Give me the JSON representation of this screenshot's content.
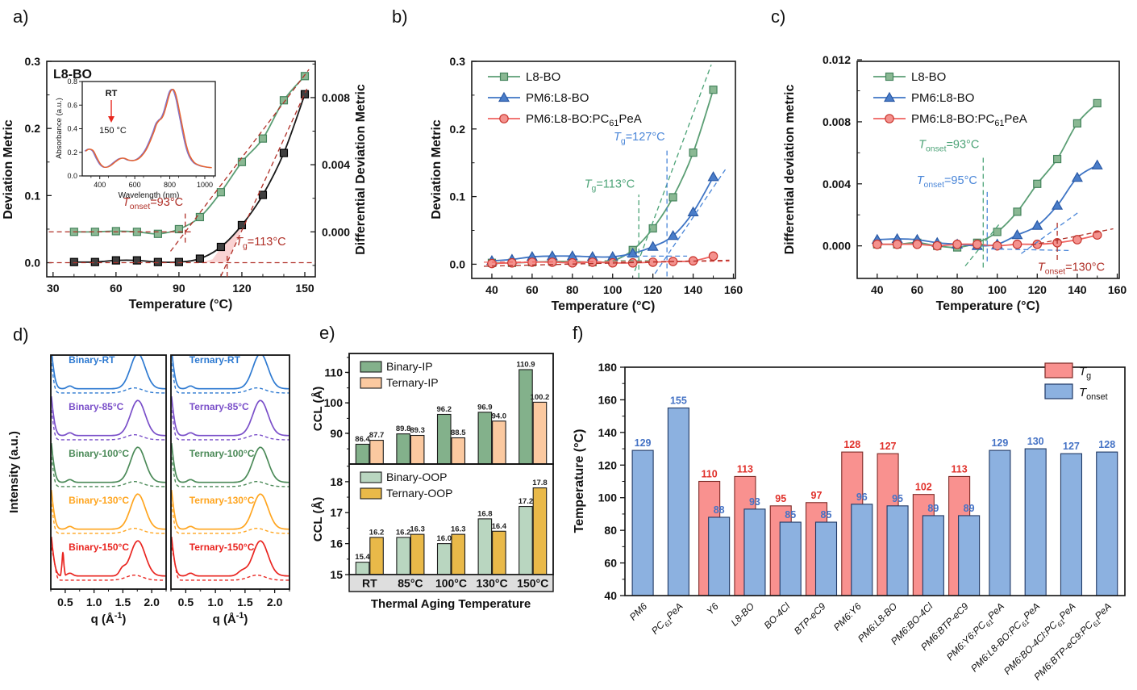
{
  "chart_data": [
    {
      "id": "a",
      "letter": "a)",
      "type": "line",
      "title": "L8-BO",
      "xlabel": "Temperature (°C)",
      "ylabel": "Deviation Metric",
      "y2label": "Differential Deviation Metric",
      "x": [
        40,
        50,
        60,
        70,
        80,
        90,
        100,
        110,
        120,
        130,
        140,
        150
      ],
      "xticks": [
        30,
        60,
        90,
        120,
        150
      ],
      "yticks": [
        "0.0",
        "0.1",
        "0.2",
        "0.3"
      ],
      "y2ticks": [
        "0.000",
        "0.004",
        "0.008"
      ],
      "y2map": {
        "base": 0.046,
        "scale": 25
      },
      "series": [
        {
          "name": "deviation-metric",
          "marker": "s",
          "line": "#5b9e74",
          "fill": "#8ab893",
          "edge": "#44845c",
          "axis": "left",
          "values": [
            0.046,
            0.046,
            0.047,
            0.046,
            0.043,
            0.05,
            0.068,
            0.105,
            0.15,
            0.185,
            0.242,
            0.278
          ]
        },
        {
          "name": "differential-deviation-metric",
          "marker": "s",
          "line": "#1a1a1a",
          "fill": "#3f3f3f",
          "edge": "#000000",
          "axis": "right",
          "values": [
            -0.0018,
            -0.0018,
            -0.0017,
            -0.0017,
            -0.0018,
            -0.0018,
            -0.0016,
            -0.0009,
            0.0004,
            0.0022,
            0.0047,
            0.0082
          ]
        }
      ],
      "ann_color": "#b03028",
      "ann_lines": [
        [
          28,
          0.046,
          96,
          0.046
        ],
        [
          86,
          0.017,
          152,
          0.288
        ],
        [
          93,
          0.03,
          93,
          0.078
        ],
        [
          28,
          0,
          155,
          0
        ],
        [
          110,
          -0.02,
          151,
          0.259
        ],
        [
          113,
          -0.021,
          113,
          0.012
        ]
      ],
      "ann_texts": [
        {
          "x": 92,
          "y": 0.085,
          "t": "*T*_{onset}=93°C",
          "c": "#b03028",
          "a": "end"
        },
        {
          "x": 117,
          "y": 0.026,
          "t": "*T*_{g}=113°C",
          "c": "#b03028",
          "a": "start"
        }
      ],
      "shade": {
        "fill": "#f6b6b6",
        "pts": [
          [
            101,
            0.001
          ],
          [
            106,
            0.005
          ],
          [
            110,
            0.022
          ],
          [
            114,
            0.035
          ],
          [
            118,
            0.047
          ],
          [
            120.5,
            0.054
          ],
          [
            113,
            0.001
          ]
        ]
      },
      "inset": {
        "xlabel": "Wavelength (nm)",
        "ylabel": "Absorbance (a.u.)",
        "xticks": [
          400,
          600,
          800,
          1000
        ],
        "yticks": [
          "0.0",
          "0.2",
          "0.4",
          "0.6",
          "0.8"
        ],
        "label_rt": "RT",
        "label_150": "150 °C",
        "colors": [
          "#8372c9",
          "#e8632c"
        ],
        "curve": [
          [
            320,
            0.21
          ],
          [
            335,
            0.225
          ],
          [
            350,
            0.225
          ],
          [
            365,
            0.21
          ],
          [
            385,
            0.15
          ],
          [
            405,
            0.1
          ],
          [
            425,
            0.075
          ],
          [
            445,
            0.075
          ],
          [
            465,
            0.09
          ],
          [
            490,
            0.12
          ],
          [
            515,
            0.145
          ],
          [
            540,
            0.15
          ],
          [
            565,
            0.135
          ],
          [
            590,
            0.13
          ],
          [
            615,
            0.14
          ],
          [
            640,
            0.17
          ],
          [
            665,
            0.22
          ],
          [
            690,
            0.3
          ],
          [
            710,
            0.375
          ],
          [
            725,
            0.44
          ],
          [
            740,
            0.47
          ],
          [
            755,
            0.49
          ],
          [
            770,
            0.54
          ],
          [
            785,
            0.62
          ],
          [
            800,
            0.7
          ],
          [
            812,
            0.73
          ],
          [
            825,
            0.725
          ],
          [
            840,
            0.66
          ],
          [
            855,
            0.55
          ],
          [
            875,
            0.4
          ],
          [
            895,
            0.26
          ],
          [
            915,
            0.17
          ],
          [
            940,
            0.115
          ],
          [
            970,
            0.09
          ],
          [
            1000,
            0.078
          ],
          [
            1040,
            0.07
          ]
        ]
      }
    },
    {
      "id": "b",
      "letter": "b)",
      "type": "line",
      "xlabel": "Temperature (°C)",
      "ylabel": "Deviation Metric",
      "x": [
        40,
        50,
        60,
        70,
        80,
        90,
        100,
        110,
        120,
        130,
        140,
        150
      ],
      "xticks": [
        40,
        60,
        80,
        100,
        120,
        140,
        160
      ],
      "yticks": [
        "0.0",
        "0.1",
        "0.2",
        "0.3"
      ],
      "legend": [
        "L8-BO",
        "PM6:L8-BO",
        "PM6:L8-BO:PC_{61}PeA"
      ],
      "series": [
        {
          "name": "L8-BO",
          "marker": "s",
          "line": "#5b9e74",
          "fill": "#8ab893",
          "edge": "#44845c",
          "axis": "left",
          "values": [
            0.002,
            0.002,
            0.003,
            0.004,
            0.004,
            0.003,
            0.005,
            0.021,
            0.053,
            0.099,
            0.165,
            0.258
          ]
        },
        {
          "name": "PM6:L8-BO",
          "marker": "t",
          "line": "#3e74c4",
          "fill": "#4a7dc9",
          "edge": "#2a59a5",
          "axis": "left",
          "values": [
            0.005,
            0.007,
            0.011,
            0.012,
            0.012,
            0.011,
            0.011,
            0.016,
            0.026,
            0.042,
            0.077,
            0.129
          ]
        },
        {
          "name": "PM6:L8-BO:PC61PeA",
          "marker": "c",
          "line": "#ef6360",
          "fill": "#f4928e",
          "edge": "#c9362e",
          "axis": "left",
          "values": [
            0.001,
            0.002,
            0.003,
            0.003,
            0.002,
            0.003,
            0.002,
            0.002,
            0.003,
            0.004,
            0.005,
            0.012
          ]
        }
      ],
      "ann_lines2": [
        {
          "l": [
            113,
            -0.02,
            113,
            0.103
          ],
          "c": "#4ca377"
        },
        {
          "l": [
            111,
            -0.01,
            149,
            0.295
          ],
          "c": "#4ca377"
        },
        {
          "l": [
            96,
            0.005,
            119,
            0.005
          ],
          "c": "#4ca377"
        },
        {
          "l": [
            127,
            -0.018,
            127,
            0.168
          ],
          "c": "#4a86d8"
        },
        {
          "l": [
            121,
            -0.014,
            156,
            0.14
          ],
          "c": "#4a86d8"
        },
        {
          "l": [
            103,
            0.012,
            137,
            0.012
          ],
          "c": "#4a86d8"
        },
        {
          "l": [
            36,
            0.003,
            158,
            0.0045
          ],
          "c": "#ef6360"
        },
        {
          "l": [
            36,
            -0.003,
            158,
            0.006
          ],
          "c": "#b03028"
        }
      ],
      "ann_texts": [
        {
          "x": 111,
          "y": 0.113,
          "t": "*T*_{g}=113°C",
          "c": "#4ca377",
          "a": "end"
        },
        {
          "x": 126,
          "y": 0.183,
          "t": "*T*_{g}=127°C",
          "c": "#4a86d8",
          "a": "end"
        }
      ]
    },
    {
      "id": "c",
      "letter": "c)",
      "type": "line",
      "xlabel": "Temperature (°C)",
      "ylabel": "Differential deviation metric",
      "x": [
        40,
        50,
        60,
        70,
        80,
        90,
        100,
        110,
        120,
        130,
        140,
        150
      ],
      "xticks": [
        40,
        60,
        80,
        100,
        120,
        140,
        160
      ],
      "yticks": [
        "0.000",
        "0.004",
        "0.008",
        "0.012"
      ],
      "legend": [
        "L8-BO",
        "PM6:L8-BO",
        "PM6:L8-BO:PC_{61}PeA"
      ],
      "series": [
        {
          "name": "L8-BO",
          "marker": "s",
          "line": "#5b9e74",
          "fill": "#8ab893",
          "edge": "#44845c",
          "axis": "left",
          "values": [
            0.0001,
            0.0001,
            0.0002,
            0.0,
            -0.0001,
            0.0002,
            0.0009,
            0.0022,
            0.004,
            0.0056,
            0.0079,
            0.0092
          ]
        },
        {
          "name": "PM6:L8-BO",
          "marker": "t",
          "line": "#3e74c4",
          "fill": "#4a7dc9",
          "edge": "#2a59a5",
          "axis": "left",
          "values": [
            0.0004,
            0.00045,
            0.0004,
            0.0002,
            0.0001,
            0.0,
            0.0001,
            0.0007,
            0.0013,
            0.0026,
            0.0044,
            0.0052
          ]
        },
        {
          "name": "PM6:L8-BO:PC61PeA",
          "marker": "c",
          "line": "#ef6360",
          "fill": "#f4928e",
          "edge": "#c9362e",
          "axis": "left",
          "values": [
            0.0001,
            0.0001,
            0.0001,
            0.0,
            0.0001,
            0.0001,
            0.0,
            0.0001,
            0.0001,
            0.0002,
            0.0004,
            0.0007
          ]
        }
      ],
      "ann_lines2": [
        {
          "l": [
            93,
            -0.0014,
            93,
            0.0058
          ],
          "c": "#4ca377"
        },
        {
          "l": [
            84,
            -0.0013,
            101,
            0.0014
          ],
          "c": "#4ca377"
        },
        {
          "l": [
            95,
            -0.001,
            95,
            0.0036
          ],
          "c": "#4a86d8"
        },
        {
          "l": [
            112,
            -0.0005,
            141,
            0.0022
          ],
          "c": "#4a86d8"
        },
        {
          "l": [
            97,
            -0.0002,
            136,
            -0.0003
          ],
          "c": "#4a86d8"
        },
        {
          "l": [
            130,
            -0.0009,
            130,
            0.0015
          ],
          "c": "#b03028"
        },
        {
          "l": [
            117,
            5e-05,
            158,
            0.0011
          ],
          "c": "#b03028"
        }
      ],
      "ann_texts": [
        {
          "x": 91,
          "y": 0.0063,
          "t": "*T*_{onset}=93°C",
          "c": "#4ca377",
          "a": "end"
        },
        {
          "x": 90,
          "y": 0.004,
          "t": "*T*_{onset}=95°C",
          "c": "#4a86d8",
          "a": "end"
        },
        {
          "x": 137,
          "y": -0.0016,
          "t": "*T*_{onset}=130°C",
          "c": "#b03028",
          "a": "middle"
        }
      ]
    },
    {
      "id": "d",
      "letter": "d)",
      "type": "line-stack",
      "ylabel": "Intensity (a.u.)",
      "xlabel": "q (Å^{-1})",
      "xticks": [
        "0.5",
        "1.0",
        "1.5",
        "2.0"
      ],
      "colors": [
        "#2e7ad1",
        "#7a4fc9",
        "#4b8a58",
        "#ffa51f",
        "#e92520"
      ],
      "groups": [
        {
          "name": "binary",
          "labels": [
            "Binary-RT",
            "Binary-85°C",
            "Binary-100°C",
            "Binary-130°C",
            "Binary-150°C"
          ]
        },
        {
          "name": "ternary",
          "labels": [
            "Ternary-RT",
            "Ternary-85°C",
            "Ternary-100°C",
            "Ternary-130°C",
            "Ternary-150°C"
          ]
        }
      ]
    },
    {
      "id": "e",
      "letter": "e)",
      "type": "bar-grouped",
      "categories": [
        "RT",
        "85°C",
        "100°C",
        "130°C",
        "150°C"
      ],
      "xlabel": "Thermal Aging Temperature",
      "top": {
        "ylabel": "CCL (Å)",
        "yticks": [
          90,
          100,
          110
        ],
        "legend": [
          "Binary-IP",
          "Ternary-IP"
        ],
        "colors": [
          "#83b18b",
          "#fbc9a0"
        ],
        "binary": [
          86.4,
          89.8,
          96.2,
          96.9,
          110.9
        ],
        "ternary": [
          87.7,
          89.3,
          88.5,
          94.0,
          100.2
        ]
      },
      "bottom": {
        "ylabel": "CCL (Å)",
        "yticks": [
          15,
          16,
          17,
          18
        ],
        "legend": [
          "Binary-OOP",
          "Ternary-OOP"
        ],
        "colors": [
          "#b9d6c0",
          "#e9b949"
        ],
        "binary": [
          15.4,
          16.2,
          16.0,
          16.8,
          17.2
        ],
        "ternary": [
          16.2,
          16.3,
          16.3,
          16.4,
          17.8
        ]
      }
    },
    {
      "id": "f",
      "letter": "f)",
      "type": "bar-paired",
      "ylabel": "Temperature (°C)",
      "yticks": [
        40,
        60,
        80,
        100,
        120,
        140,
        160,
        180
      ],
      "legend": [
        {
          "label": "*T*_{g}",
          "fill": "#f9918f",
          "edge": "#7d2a26"
        },
        {
          "label": "*T*_{onset}",
          "fill": "#8cb1e0",
          "edge": "#1f3864"
        }
      ],
      "categories": [
        "PM6",
        "PC_{61}PeA",
        "Y6",
        "L8-BO",
        "BO-4Cl",
        "BTP-eC9",
        "PM6:Y6",
        "PM6:L8-BO",
        "PM6:BO-4Cl",
        "PM6:BTP-eC9",
        "PM6:Y6:PC_{61}PeA",
        "PM6:L8-BO:PC_{61}PeA",
        "PM6:BO-4Cl:PC_{61}PeA",
        "PM6:BTP-eC9:PC_{61}PeA"
      ],
      "tg": [
        null,
        null,
        110,
        113,
        95,
        97,
        128,
        127,
        102,
        113,
        null,
        null,
        null,
        null
      ],
      "tonset": [
        129,
        155,
        88,
        93,
        85,
        85,
        96,
        95,
        89,
        89,
        129,
        130,
        127,
        128
      ],
      "colors": {
        "tg_fill": "#f9918f",
        "tg_edge": "#7d2a26",
        "tonset_fill": "#8cb1e0",
        "tonset_edge": "#1f3864",
        "tg_label": "#e0302a",
        "tonset_label": "#4673c5"
      }
    }
  ]
}
